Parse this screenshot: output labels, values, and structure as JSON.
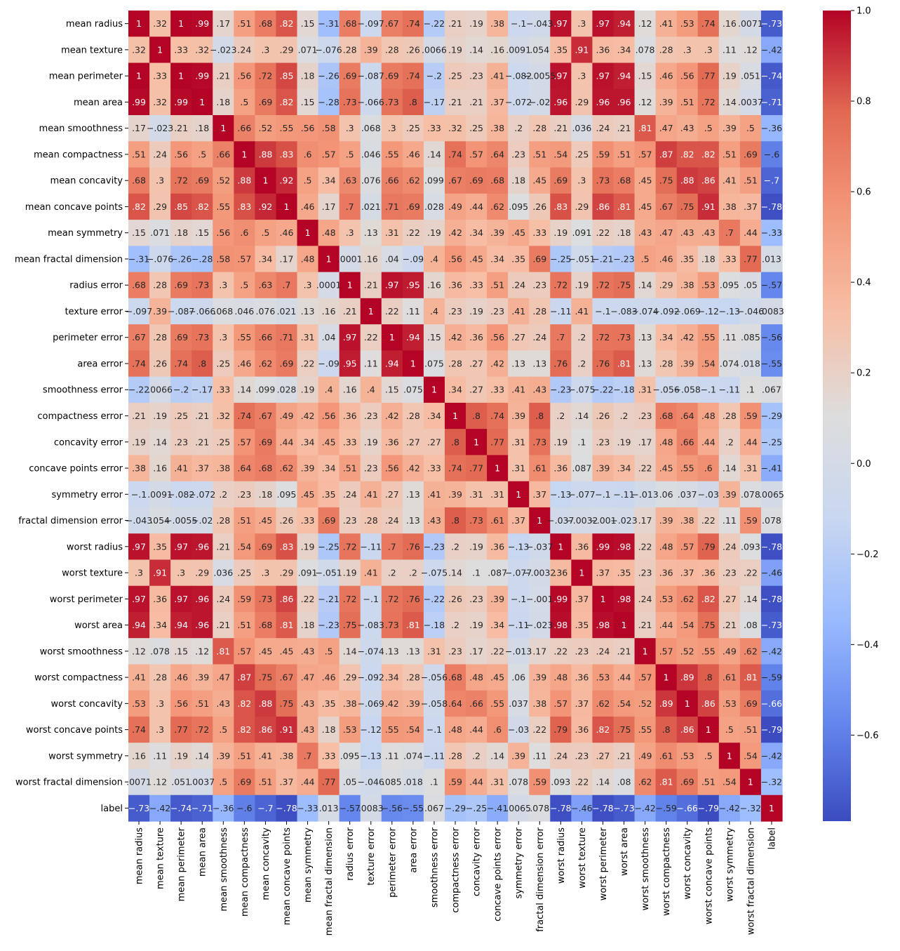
{
  "chart_data": {
    "type": "heatmap",
    "title": "",
    "xlabel": "",
    "ylabel": "",
    "colormap": "coolwarm",
    "colormap_stops": [
      "#3b4cc0",
      "#6688ee",
      "#9abbff",
      "#c9d7f0",
      "#dddddd",
      "#f6bfa6",
      "#f4987a",
      "#e26952",
      "#b40426"
    ],
    "vmin": -0.79,
    "vmax": 1.0,
    "colorbar_ticks": [
      "1.0",
      "0.8",
      "0.6",
      "0.4",
      "0.2",
      "0.0",
      "−0.2",
      "−0.4",
      "−0.6"
    ],
    "colorbar_tick_values": [
      1.0,
      0.8,
      0.6,
      0.4,
      0.2,
      0.0,
      -0.2,
      -0.4,
      -0.6
    ],
    "labels": [
      "mean radius",
      "mean texture",
      "mean perimeter",
      "mean area",
      "mean smoothness",
      "mean compactness",
      "mean concavity",
      "mean concave points",
      "mean symmetry",
      "mean fractal dimension",
      "radius error",
      "texture error",
      "perimeter error",
      "area error",
      "smoothness error",
      "compactness error",
      "concavity error",
      "concave points error",
      "symmetry error",
      "fractal dimension error",
      "worst radius",
      "worst texture",
      "worst perimeter",
      "worst area",
      "worst smoothness",
      "worst compactness",
      "worst concavity",
      "worst concave points",
      "worst symmetry",
      "worst fractal dimension",
      "label"
    ],
    "values": [
      [
        1,
        0.32,
        1,
        0.99,
        0.17,
        0.51,
        0.68,
        0.82,
        0.15,
        -0.31,
        0.68,
        -0.097,
        0.67,
        0.74,
        -0.22,
        0.21,
        0.19,
        0.38,
        -0.1,
        -0.043,
        0.97,
        0.3,
        0.97,
        0.94,
        0.12,
        0.41,
        0.53,
        0.74,
        0.16,
        0.0071,
        -0.73
      ],
      [
        0.32,
        1,
        0.33,
        0.32,
        -0.023,
        0.24,
        0.3,
        0.29,
        0.071,
        -0.076,
        0.28,
        0.39,
        0.28,
        0.26,
        0.0066,
        0.19,
        0.14,
        0.16,
        0.0091,
        0.054,
        0.35,
        0.91,
        0.36,
        0.34,
        0.078,
        0.28,
        0.3,
        0.3,
        0.11,
        0.12,
        -0.42
      ],
      [
        1,
        0.33,
        1,
        0.99,
        0.21,
        0.56,
        0.72,
        0.85,
        0.18,
        -0.26,
        0.69,
        -0.087,
        0.69,
        0.74,
        -0.2,
        0.25,
        0.23,
        0.41,
        -0.082,
        -0.0055,
        0.97,
        0.3,
        0.97,
        0.94,
        0.15,
        0.46,
        0.56,
        0.77,
        0.19,
        0.051,
        -0.74
      ],
      [
        0.99,
        0.32,
        0.99,
        1,
        0.18,
        0.5,
        0.69,
        0.82,
        0.15,
        -0.28,
        0.73,
        -0.066,
        0.73,
        0.8,
        -0.17,
        0.21,
        0.21,
        0.37,
        -0.072,
        -0.02,
        0.96,
        0.29,
        0.96,
        0.96,
        0.12,
        0.39,
        0.51,
        0.72,
        0.14,
        0.0037,
        -0.71
      ],
      [
        0.17,
        -0.023,
        0.21,
        0.18,
        1,
        0.66,
        0.52,
        0.55,
        0.56,
        0.58,
        0.3,
        0.068,
        0.3,
        0.25,
        0.33,
        0.32,
        0.25,
        0.38,
        0.2,
        0.28,
        0.21,
        0.036,
        0.24,
        0.21,
        0.81,
        0.47,
        0.43,
        0.5,
        0.39,
        0.5,
        -0.36
      ],
      [
        0.51,
        0.24,
        0.56,
        0.5,
        0.66,
        1,
        0.88,
        0.83,
        0.6,
        0.57,
        0.5,
        0.046,
        0.55,
        0.46,
        0.14,
        0.74,
        0.57,
        0.64,
        0.23,
        0.51,
        0.54,
        0.25,
        0.59,
        0.51,
        0.57,
        0.87,
        0.82,
        0.82,
        0.51,
        0.69,
        -0.6
      ],
      [
        0.68,
        0.3,
        0.72,
        0.69,
        0.52,
        0.88,
        1,
        0.92,
        0.5,
        0.34,
        0.63,
        0.076,
        0.66,
        0.62,
        0.099,
        0.67,
        0.69,
        0.68,
        0.18,
        0.45,
        0.69,
        0.3,
        0.73,
        0.68,
        0.45,
        0.75,
        0.88,
        0.86,
        0.41,
        0.51,
        -0.7
      ],
      [
        0.82,
        0.29,
        0.85,
        0.82,
        0.55,
        0.83,
        0.92,
        1,
        0.46,
        0.17,
        0.7,
        0.021,
        0.71,
        0.69,
        0.028,
        0.49,
        0.44,
        0.62,
        0.095,
        0.26,
        0.83,
        0.29,
        0.86,
        0.81,
        0.45,
        0.67,
        0.75,
        0.91,
        0.38,
        0.37,
        -0.78
      ],
      [
        0.15,
        0.071,
        0.18,
        0.15,
        0.56,
        0.6,
        0.5,
        0.46,
        1,
        0.48,
        0.3,
        0.13,
        0.31,
        0.22,
        0.19,
        0.42,
        0.34,
        0.39,
        0.45,
        0.33,
        0.19,
        0.091,
        0.22,
        0.18,
        0.43,
        0.47,
        0.43,
        0.43,
        0.7,
        0.44,
        -0.33
      ],
      [
        -0.31,
        -0.076,
        -0.26,
        -0.28,
        0.58,
        0.57,
        0.34,
        0.17,
        0.48,
        1,
        0.0001,
        0.16,
        0.04,
        -0.09,
        0.4,
        0.56,
        0.45,
        0.34,
        0.35,
        0.69,
        -0.25,
        -0.051,
        -0.21,
        -0.23,
        0.5,
        0.46,
        0.35,
        0.18,
        0.33,
        0.77,
        0.013
      ],
      [
        0.68,
        0.28,
        0.69,
        0.73,
        0.3,
        0.5,
        0.63,
        0.7,
        0.3,
        0.0001,
        1,
        0.21,
        0.97,
        0.95,
        0.16,
        0.36,
        0.33,
        0.51,
        0.24,
        0.23,
        0.72,
        0.19,
        0.72,
        0.75,
        0.14,
        0.29,
        0.38,
        0.53,
        0.095,
        0.05,
        -0.57
      ],
      [
        -0.097,
        0.39,
        -0.087,
        -0.066,
        0.068,
        0.046,
        0.076,
        0.021,
        0.13,
        0.16,
        0.21,
        1,
        0.22,
        0.11,
        0.4,
        0.23,
        0.19,
        0.23,
        0.41,
        0.28,
        -0.11,
        0.41,
        -0.1,
        -0.083,
        -0.074,
        -0.092,
        -0.069,
        -0.12,
        -0.13,
        -0.046,
        0.0083
      ],
      [
        0.67,
        0.28,
        0.69,
        0.73,
        0.3,
        0.55,
        0.66,
        0.71,
        0.31,
        0.04,
        0.97,
        0.22,
        1,
        0.94,
        0.15,
        0.42,
        0.36,
        0.56,
        0.27,
        0.24,
        0.7,
        0.2,
        0.72,
        0.73,
        0.13,
        0.34,
        0.42,
        0.55,
        0.11,
        0.085,
        -0.56
      ],
      [
        0.74,
        0.26,
        0.74,
        0.8,
        0.25,
        0.46,
        0.62,
        0.69,
        0.22,
        -0.09,
        0.95,
        0.11,
        0.94,
        1,
        0.075,
        0.28,
        0.27,
        0.42,
        0.13,
        0.13,
        0.76,
        0.2,
        0.76,
        0.81,
        0.13,
        0.28,
        0.39,
        0.54,
        0.074,
        0.018,
        -0.55
      ],
      [
        -0.22,
        0.0066,
        -0.2,
        -0.17,
        0.33,
        0.14,
        0.099,
        0.028,
        0.19,
        0.4,
        0.16,
        0.4,
        0.15,
        0.075,
        1,
        0.34,
        0.27,
        0.33,
        0.41,
        0.43,
        -0.23,
        -0.075,
        -0.22,
        -0.18,
        0.31,
        -0.056,
        -0.058,
        -0.1,
        -0.11,
        0.1,
        0.067
      ],
      [
        0.21,
        0.19,
        0.25,
        0.21,
        0.32,
        0.74,
        0.67,
        0.49,
        0.42,
        0.56,
        0.36,
        0.23,
        0.42,
        0.28,
        0.34,
        1,
        0.8,
        0.74,
        0.39,
        0.8,
        0.2,
        0.14,
        0.26,
        0.2,
        0.23,
        0.68,
        0.64,
        0.48,
        0.28,
        0.59,
        -0.29
      ],
      [
        0.19,
        0.14,
        0.23,
        0.21,
        0.25,
        0.57,
        0.69,
        0.44,
        0.34,
        0.45,
        0.33,
        0.19,
        0.36,
        0.27,
        0.27,
        0.8,
        1,
        0.77,
        0.31,
        0.73,
        0.19,
        0.1,
        0.23,
        0.19,
        0.17,
        0.48,
        0.66,
        0.44,
        0.2,
        0.44,
        -0.25
      ],
      [
        0.38,
        0.16,
        0.41,
        0.37,
        0.38,
        0.64,
        0.68,
        0.62,
        0.39,
        0.34,
        0.51,
        0.23,
        0.56,
        0.42,
        0.33,
        0.74,
        0.77,
        1,
        0.31,
        0.61,
        0.36,
        0.087,
        0.39,
        0.34,
        0.22,
        0.45,
        0.55,
        0.6,
        0.14,
        0.31,
        -0.41
      ],
      [
        -0.1,
        0.0091,
        -0.082,
        -0.072,
        0.2,
        0.23,
        0.18,
        0.095,
        0.45,
        0.35,
        0.24,
        0.41,
        0.27,
        0.13,
        0.41,
        0.39,
        0.31,
        0.31,
        1,
        0.37,
        -0.13,
        -0.077,
        -0.1,
        -0.11,
        -0.013,
        0.06,
        0.037,
        -0.03,
        0.39,
        0.078,
        0.0065
      ],
      [
        -0.043,
        0.054,
        -0.0055,
        -0.02,
        0.28,
        0.51,
        0.45,
        0.26,
        0.33,
        0.69,
        0.23,
        0.28,
        0.24,
        0.13,
        0.43,
        0.8,
        0.73,
        0.61,
        0.37,
        1,
        -0.037,
        -0.0032,
        -0.001,
        -0.023,
        0.17,
        0.39,
        0.38,
        0.22,
        0.11,
        0.59,
        0.078
      ],
      [
        0.97,
        0.35,
        0.97,
        0.96,
        0.21,
        0.54,
        0.69,
        0.83,
        0.19,
        -0.25,
        0.72,
        -0.11,
        0.7,
        0.76,
        -0.23,
        0.2,
        0.19,
        0.36,
        -0.13,
        -0.037,
        1,
        0.36,
        0.99,
        0.98,
        0.22,
        0.48,
        0.57,
        0.79,
        0.24,
        0.093,
        -0.78
      ],
      [
        0.3,
        0.91,
        0.3,
        0.29,
        0.036,
        0.25,
        0.3,
        0.29,
        0.091,
        -0.051,
        0.19,
        0.41,
        0.2,
        0.2,
        -0.075,
        0.14,
        0.1,
        0.087,
        -0.077,
        -0.0032,
        0.36,
        1,
        0.37,
        0.35,
        0.23,
        0.36,
        0.37,
        0.36,
        0.23,
        0.22,
        -0.46
      ],
      [
        0.97,
        0.36,
        0.97,
        0.96,
        0.24,
        0.59,
        0.73,
        0.86,
        0.22,
        -0.21,
        0.72,
        -0.1,
        0.72,
        0.76,
        -0.22,
        0.26,
        0.23,
        0.39,
        -0.1,
        -0.001,
        0.99,
        0.37,
        1,
        0.98,
        0.24,
        0.53,
        0.62,
        0.82,
        0.27,
        0.14,
        -0.78
      ],
      [
        0.94,
        0.34,
        0.94,
        0.96,
        0.21,
        0.51,
        0.68,
        0.81,
        0.18,
        -0.23,
        0.75,
        -0.083,
        0.73,
        0.81,
        -0.18,
        0.2,
        0.19,
        0.34,
        -0.11,
        -0.023,
        0.98,
        0.35,
        0.98,
        1,
        0.21,
        0.44,
        0.54,
        0.75,
        0.21,
        0.08,
        -0.73
      ],
      [
        0.12,
        0.078,
        0.15,
        0.12,
        0.81,
        0.57,
        0.45,
        0.45,
        0.43,
        0.5,
        0.14,
        -0.074,
        0.13,
        0.13,
        0.31,
        0.23,
        0.17,
        0.22,
        -0.013,
        0.17,
        0.22,
        0.23,
        0.24,
        0.21,
        1,
        0.57,
        0.52,
        0.55,
        0.49,
        0.62,
        -0.42
      ],
      [
        0.41,
        0.28,
        0.46,
        0.39,
        0.47,
        0.87,
        0.75,
        0.67,
        0.47,
        0.46,
        0.29,
        -0.092,
        0.34,
        0.28,
        -0.056,
        0.68,
        0.48,
        0.45,
        0.06,
        0.39,
        0.48,
        0.36,
        0.53,
        0.44,
        0.57,
        1,
        0.89,
        0.8,
        0.61,
        0.81,
        -0.59
      ],
      [
        0.53,
        0.3,
        0.56,
        0.51,
        0.43,
        0.82,
        0.88,
        0.75,
        0.43,
        0.35,
        0.38,
        -0.069,
        0.42,
        0.39,
        -0.058,
        0.64,
        0.66,
        0.55,
        0.037,
        0.38,
        0.57,
        0.37,
        0.62,
        0.54,
        0.52,
        0.89,
        1,
        0.86,
        0.53,
        0.69,
        -0.66
      ],
      [
        0.74,
        0.3,
        0.77,
        0.72,
        0.5,
        0.82,
        0.86,
        0.91,
        0.43,
        0.18,
        0.53,
        -0.12,
        0.55,
        0.54,
        -0.1,
        0.48,
        0.44,
        0.6,
        -0.03,
        0.22,
        0.79,
        0.36,
        0.82,
        0.75,
        0.55,
        0.8,
        0.86,
        1,
        0.5,
        0.51,
        -0.79
      ],
      [
        0.16,
        0.11,
        0.19,
        0.14,
        0.39,
        0.51,
        0.41,
        0.38,
        0.7,
        0.33,
        0.095,
        -0.13,
        0.11,
        0.074,
        -0.11,
        0.28,
        0.2,
        0.14,
        0.39,
        0.11,
        0.24,
        0.23,
        0.27,
        0.21,
        0.49,
        0.61,
        0.53,
        0.5,
        1,
        0.54,
        -0.42
      ],
      [
        0.0071,
        0.12,
        0.051,
        0.0037,
        0.5,
        0.69,
        0.51,
        0.37,
        0.44,
        0.77,
        0.05,
        -0.046,
        0.085,
        0.018,
        0.1,
        0.59,
        0.44,
        0.31,
        0.078,
        0.59,
        0.093,
        0.22,
        0.14,
        0.08,
        0.62,
        0.81,
        0.69,
        0.51,
        0.54,
        1,
        -0.32
      ],
      [
        -0.73,
        -0.42,
        -0.74,
        -0.71,
        -0.36,
        -0.6,
        -0.7,
        -0.78,
        -0.33,
        0.013,
        -0.57,
        0.0083,
        -0.56,
        -0.55,
        0.067,
        -0.29,
        -0.25,
        -0.41,
        0.0065,
        0.078,
        -0.78,
        -0.46,
        -0.78,
        -0.73,
        -0.42,
        -0.59,
        -0.66,
        -0.79,
        -0.42,
        -0.32,
        1
      ]
    ]
  }
}
